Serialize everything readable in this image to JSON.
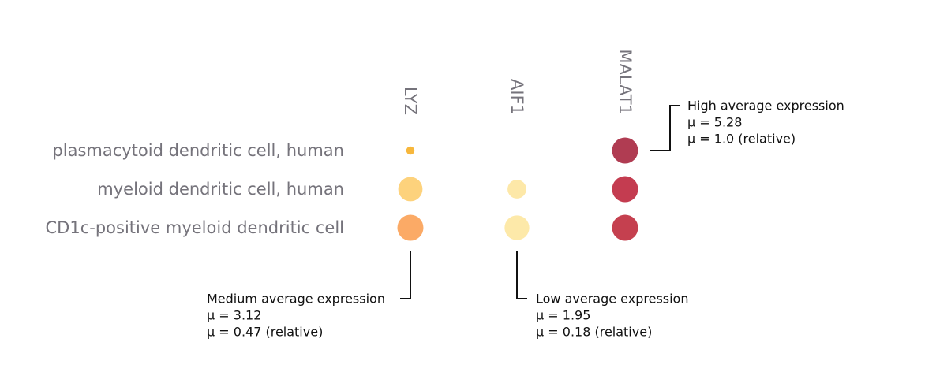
{
  "chart_data": {
    "type": "scatter",
    "subtype": "dot-plot",
    "genes": [
      "LYZ",
      "AIF1",
      "MALAT1"
    ],
    "cell_types": [
      "plasmacytoid dendritic cell, human",
      "myeloid dendritic cell, human",
      "CD1c-positive myeloid dendritic cell"
    ],
    "points": [
      {
        "cell_type": "plasmacytoid dendritic cell, human",
        "gene": "LYZ",
        "size": 0.1,
        "color": "#f7b73c"
      },
      {
        "cell_type": "plasmacytoid dendritic cell, human",
        "gene": "MALAT1",
        "size": 1.0,
        "color": "#b03c52"
      },
      {
        "cell_type": "myeloid dendritic cell, human",
        "gene": "LYZ",
        "size": 0.87,
        "color": "#fdd27c"
      },
      {
        "cell_type": "myeloid dendritic cell, human",
        "gene": "AIF1",
        "size": 0.52,
        "color": "#fde8a8"
      },
      {
        "cell_type": "myeloid dendritic cell, human",
        "gene": "MALAT1",
        "size": 1.0,
        "color": "#c43c50"
      },
      {
        "cell_type": "CD1c-positive myeloid dendritic cell",
        "gene": "LYZ",
        "size": 1.0,
        "color": "#fbaa66"
      },
      {
        "cell_type": "CD1c-positive myeloid dendritic cell",
        "gene": "AIF1",
        "size": 0.9,
        "color": "#fde9a9"
      },
      {
        "cell_type": "CD1c-positive myeloid dendritic cell",
        "gene": "MALAT1",
        "size": 1.0,
        "color": "#c5404f"
      }
    ],
    "annotations": [
      {
        "gene": "MALAT1",
        "cell_type": "plasmacytoid dendritic cell, human",
        "placement": "right",
        "lines": [
          "High average expression",
          "μ = 5.28",
          "μ = 1.0 (relative)"
        ]
      },
      {
        "gene": "LYZ",
        "cell_type": "CD1c-positive myeloid dendritic cell",
        "placement": "bottom-left",
        "lines": [
          "Medium average expression",
          "μ = 3.12",
          "μ = 0.47 (relative)"
        ]
      },
      {
        "gene": "AIF1",
        "cell_type": "CD1c-positive myeloid dendritic cell",
        "placement": "bottom-right",
        "lines": [
          "Low average expression",
          "μ = 1.95",
          "μ = 0.18 (relative)"
        ]
      }
    ]
  }
}
